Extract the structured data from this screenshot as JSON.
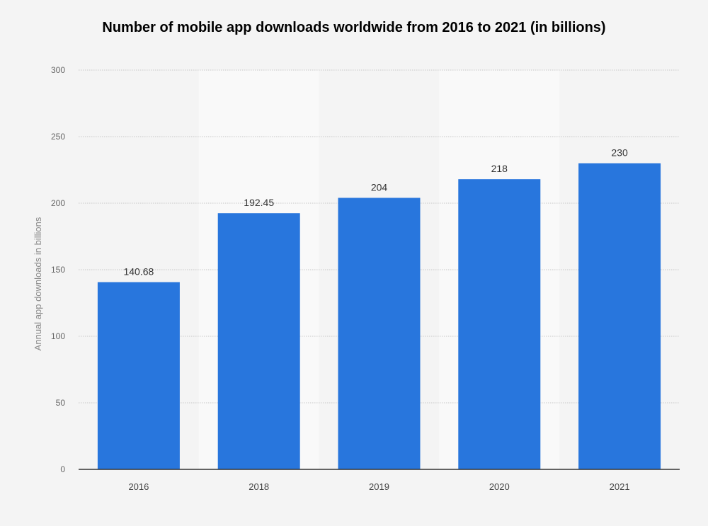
{
  "chart_data": {
    "type": "bar",
    "title": "Number of mobile app downloads worldwide from 2016 to 2021 (in billions)",
    "xlabel": "",
    "ylabel": "Annual app downloads in billions",
    "categories": [
      "2016",
      "2018",
      "2019",
      "2020",
      "2021"
    ],
    "values": [
      140.68,
      192.45,
      204,
      218,
      230
    ],
    "data_labels": [
      "140.68",
      "192.45",
      "204",
      "218",
      "230"
    ],
    "ylim": [
      0,
      300
    ],
    "yticks": [
      0,
      50,
      100,
      150,
      200,
      250,
      300
    ],
    "grid": true,
    "legend": "none",
    "colors": {
      "bar": "#2876dd",
      "background": "#f4f4f4",
      "alt_column": "#f9f9f9"
    }
  }
}
